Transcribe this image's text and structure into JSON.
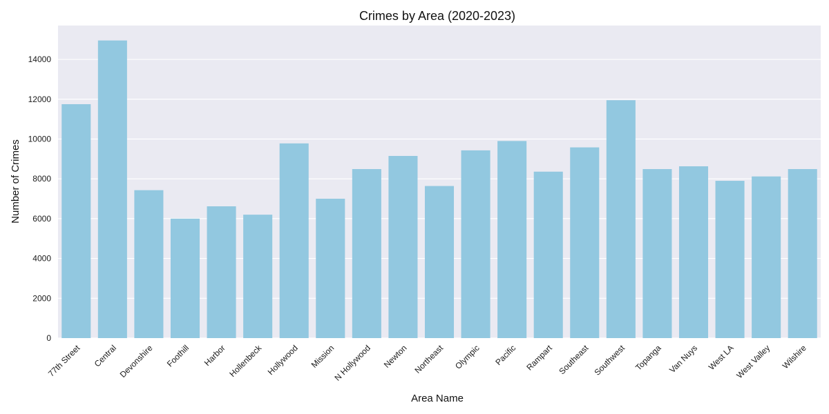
{
  "chart_data": {
    "type": "bar",
    "title": "Crimes by Area (2020-2023)",
    "xlabel": "Area Name",
    "ylabel": "Number of Crimes",
    "categories": [
      "77th Street",
      "Central",
      "Devonshire",
      "Foothill",
      "Harbor",
      "Hollenbeck",
      "Hollywood",
      "Mission",
      "N Hollywood",
      "Newton",
      "Northeast",
      "Olympic",
      "Pacific",
      "Rampart",
      "Southeast",
      "Southwest",
      "Topanga",
      "Van Nuys",
      "West LA",
      "West Valley",
      "Wilshire"
    ],
    "values": [
      11750,
      14950,
      7430,
      6000,
      6620,
      6200,
      9780,
      7000,
      8490,
      9150,
      7640,
      9430,
      9900,
      8360,
      9580,
      11950,
      8490,
      8630,
      7900,
      8120,
      8490
    ],
    "ylim": [
      0,
      15700
    ],
    "yticks": [
      0,
      2000,
      4000,
      6000,
      8000,
      10000,
      12000,
      14000
    ],
    "ytick_labels": [
      "0",
      "2000",
      "4000",
      "6000",
      "8000",
      "10000",
      "12000",
      "14000"
    ],
    "grid": true,
    "colors": {
      "bar": "#92c8e0",
      "plot_bg": "#eaeaf2",
      "grid": "#ffffff"
    }
  }
}
